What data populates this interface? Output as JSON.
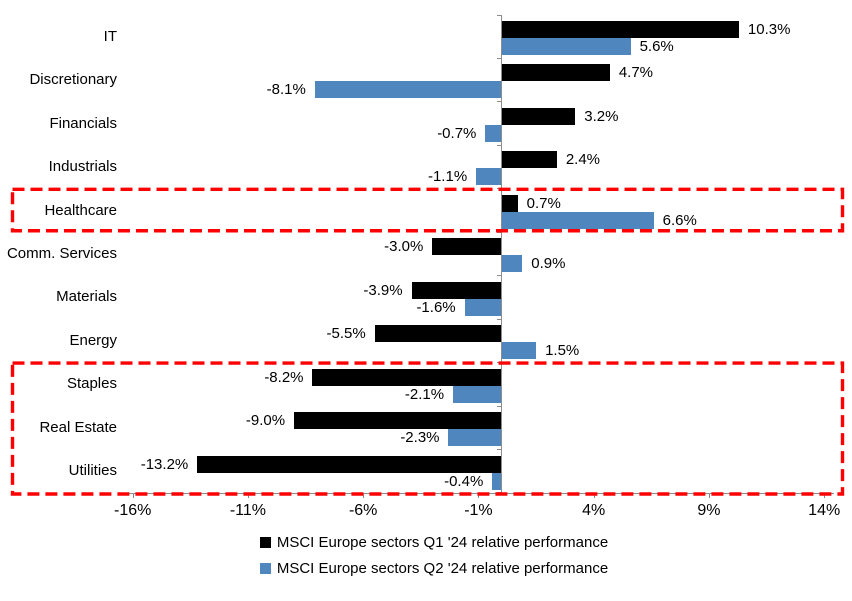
{
  "chart_data": {
    "type": "bar",
    "orientation": "horizontal",
    "title": "",
    "categories": [
      "IT",
      "Discretionary",
      "Financials",
      "Industrials",
      "Healthcare",
      "Comm. Services",
      "Materials",
      "Energy",
      "Staples",
      "Real Estate",
      "Utilities"
    ],
    "series": [
      {
        "name": "MSCI Europe sectors Q1 '24 relative performance",
        "color": "#000000",
        "values": [
          10.3,
          4.7,
          3.2,
          2.4,
          0.7,
          -3.0,
          -3.9,
          -5.5,
          -8.2,
          -9.0,
          -13.2
        ],
        "labels": [
          "10.3%",
          "4.7%",
          "3.2%",
          "2.4%",
          "0.7%",
          "-3.0%",
          "-3.9%",
          "-5.5%",
          "-8.2%",
          "-9.0%",
          "-13.2%"
        ]
      },
      {
        "name": "MSCI Europe sectors Q2 '24 relative performance",
        "color": "#4F86BE",
        "values": [
          5.6,
          -8.1,
          -0.7,
          -1.1,
          6.6,
          0.9,
          -1.6,
          1.5,
          -2.1,
          -2.3,
          -0.4
        ],
        "labels": [
          "5.6%",
          "-8.1%",
          "-0.7%",
          "-1.1%",
          "6.6%",
          "0.9%",
          "-1.6%",
          "1.5%",
          "-2.1%",
          "-2.3%",
          "-0.4%"
        ]
      }
    ],
    "x_axis": {
      "tick_values": [
        -16,
        -11,
        -6,
        -1,
        4,
        9,
        14
      ],
      "tick_labels": [
        "-16%",
        "-11%",
        "-6%",
        "-1%",
        "4%",
        "9%",
        "14%"
      ],
      "range": [
        -16.6,
        14.4
      ],
      "grid": false
    },
    "legend_position": "bottom",
    "annotations": {
      "highlight_color": "#FE0000",
      "highlight_boxes": [
        {
          "row_start": 4,
          "row_end": 4,
          "rows": [
            "Healthcare"
          ]
        },
        {
          "row_start": 8,
          "row_end": 10,
          "rows": [
            "Staples",
            "Real Estate",
            "Utilities"
          ]
        }
      ]
    }
  }
}
